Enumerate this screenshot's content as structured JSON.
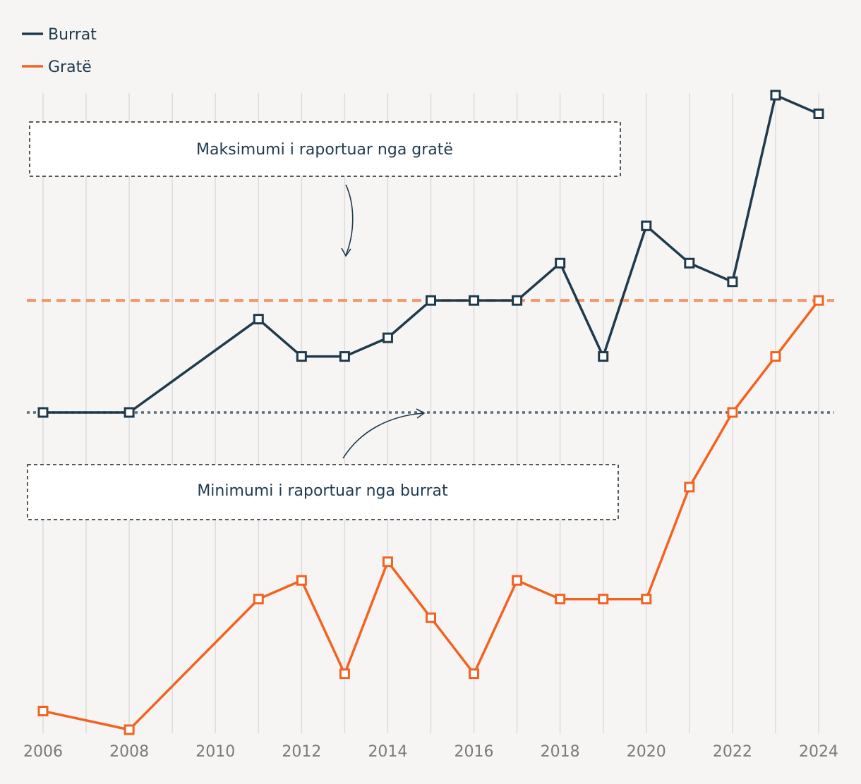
{
  "chart_data": {
    "type": "line",
    "x": [
      2006,
      2008,
      2011,
      2012,
      2013,
      2014,
      2015,
      2016,
      2017,
      2018,
      2019,
      2020,
      2021,
      2022,
      2023,
      2024
    ],
    "x_ticks": [
      "2006",
      "2008",
      "2010",
      "2012",
      "2014",
      "2016",
      "2018",
      "2020",
      "2022",
      "2024"
    ],
    "xlim": [
      2006,
      2024
    ],
    "ylim": [
      0,
      34
    ],
    "ylabel": "",
    "xlabel": "",
    "grid": "vertical",
    "legend_position": "top-left",
    "series": [
      {
        "name": "Burrat",
        "color": "#1f3a4d",
        "values": [
          17,
          17,
          22,
          20,
          20,
          21,
          23,
          23,
          23,
          25,
          20,
          27,
          25,
          24,
          34,
          33
        ]
      },
      {
        "name": "Gratë",
        "color": "#f26322",
        "values": [
          1,
          0,
          7,
          8,
          3,
          9,
          6,
          3,
          8,
          7,
          7,
          7,
          13,
          17,
          20,
          23
        ]
      }
    ],
    "reference_lines": [
      {
        "name": "max-women",
        "value": 23,
        "color": "#f4956a",
        "style": "dashed"
      },
      {
        "name": "min-men",
        "value": 17,
        "color": "#5a6c78",
        "style": "dotted"
      }
    ],
    "annotations": [
      {
        "text": "Maksimumi i raportuar nga gratë",
        "target": "max-women"
      },
      {
        "text": "Minimumi i raportuar nga burrat",
        "target": "min-men"
      }
    ]
  }
}
